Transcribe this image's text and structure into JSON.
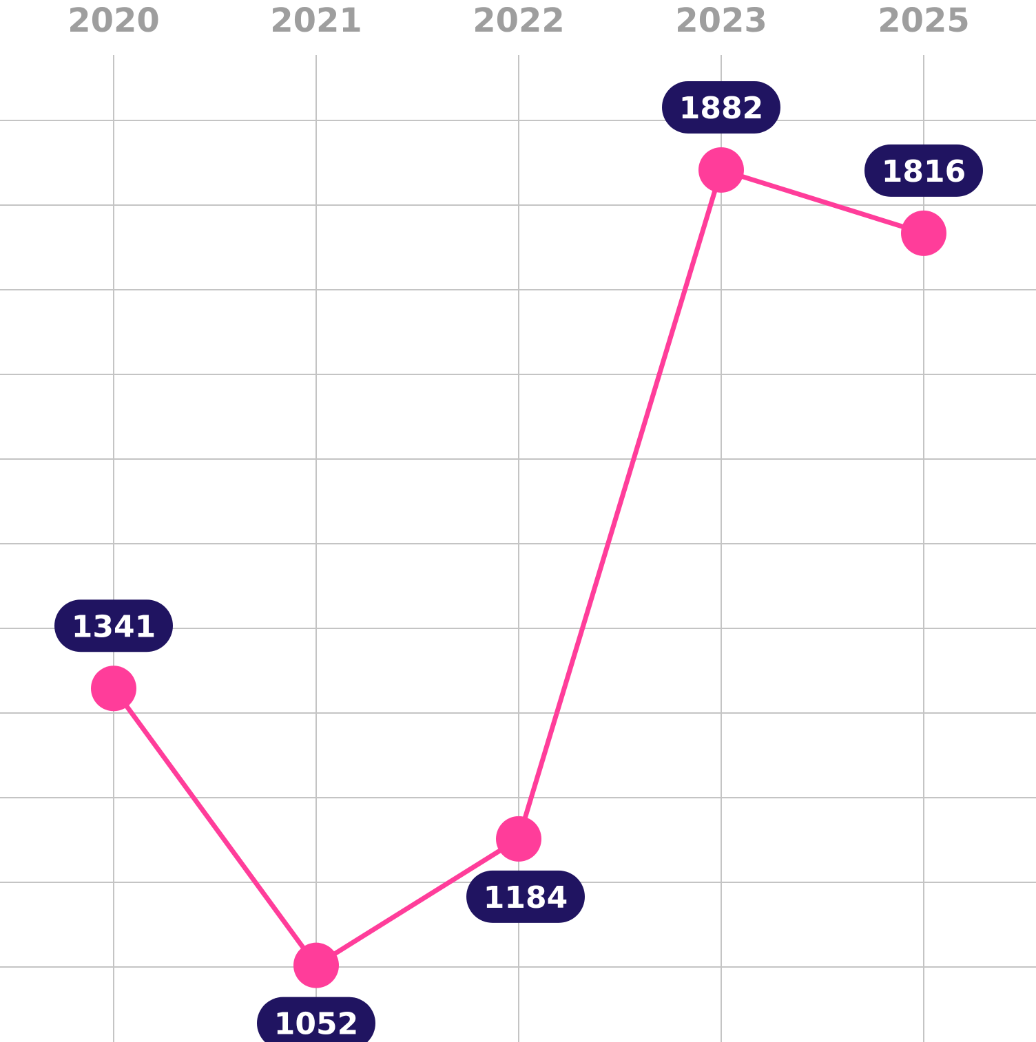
{
  "chart_data": {
    "type": "line",
    "title": "",
    "xlabel": "",
    "ylabel": "",
    "categories": [
      "2020",
      "2021",
      "2022",
      "2023",
      "2025"
    ],
    "series": [
      {
        "values": [
          1341,
          1052,
          1184,
          1882,
          1816
        ],
        "data_labels": [
          "1341",
          "1052",
          "1184",
          "1882",
          "1816"
        ]
      }
    ],
    "ylim": [
      962,
      2022
    ],
    "grid": true,
    "x_axis_position": "top",
    "y_axis_visible": false,
    "legend": "none",
    "colors": {
      "line": "#ff3d9a",
      "marker": "#ff3d9a",
      "label_background": "#201461",
      "label_text": "#ffffff",
      "grid": "#c4c4c4",
      "tick_label": "#9e9e9e"
    }
  }
}
